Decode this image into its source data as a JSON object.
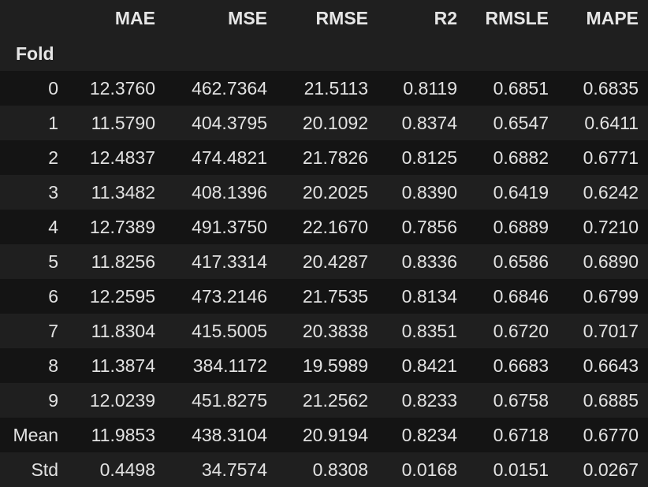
{
  "table": {
    "columns": [
      "MAE",
      "MSE",
      "RMSE",
      "R2",
      "RMSLE",
      "MAPE"
    ],
    "index_name": "Fold",
    "rows": [
      {
        "index": "0",
        "cells": [
          "12.3760",
          "462.7364",
          "21.5113",
          "0.8119",
          "0.6851",
          "0.6835"
        ]
      },
      {
        "index": "1",
        "cells": [
          "11.5790",
          "404.3795",
          "20.1092",
          "0.8374",
          "0.6547",
          "0.6411"
        ]
      },
      {
        "index": "2",
        "cells": [
          "12.4837",
          "474.4821",
          "21.7826",
          "0.8125",
          "0.6882",
          "0.6771"
        ]
      },
      {
        "index": "3",
        "cells": [
          "11.3482",
          "408.1396",
          "20.2025",
          "0.8390",
          "0.6419",
          "0.6242"
        ]
      },
      {
        "index": "4",
        "cells": [
          "12.7389",
          "491.3750",
          "22.1670",
          "0.7856",
          "0.6889",
          "0.7210"
        ]
      },
      {
        "index": "5",
        "cells": [
          "11.8256",
          "417.3314",
          "20.4287",
          "0.8336",
          "0.6586",
          "0.6890"
        ]
      },
      {
        "index": "6",
        "cells": [
          "12.2595",
          "473.2146",
          "21.7535",
          "0.8134",
          "0.6846",
          "0.6799"
        ]
      },
      {
        "index": "7",
        "cells": [
          "11.8304",
          "415.5005",
          "20.3838",
          "0.8351",
          "0.6720",
          "0.7017"
        ]
      },
      {
        "index": "8",
        "cells": [
          "11.3874",
          "384.1172",
          "19.5989",
          "0.8421",
          "0.6683",
          "0.6643"
        ]
      },
      {
        "index": "9",
        "cells": [
          "12.0239",
          "451.8275",
          "21.2562",
          "0.8233",
          "0.6758",
          "0.6885"
        ]
      },
      {
        "index": "Mean",
        "cells": [
          "11.9853",
          "438.3104",
          "20.9194",
          "0.8234",
          "0.6718",
          "0.6770"
        ]
      },
      {
        "index": "Std",
        "cells": [
          "0.4498",
          "34.7574",
          "0.8308",
          "0.0168",
          "0.0151",
          "0.0267"
        ]
      }
    ]
  }
}
